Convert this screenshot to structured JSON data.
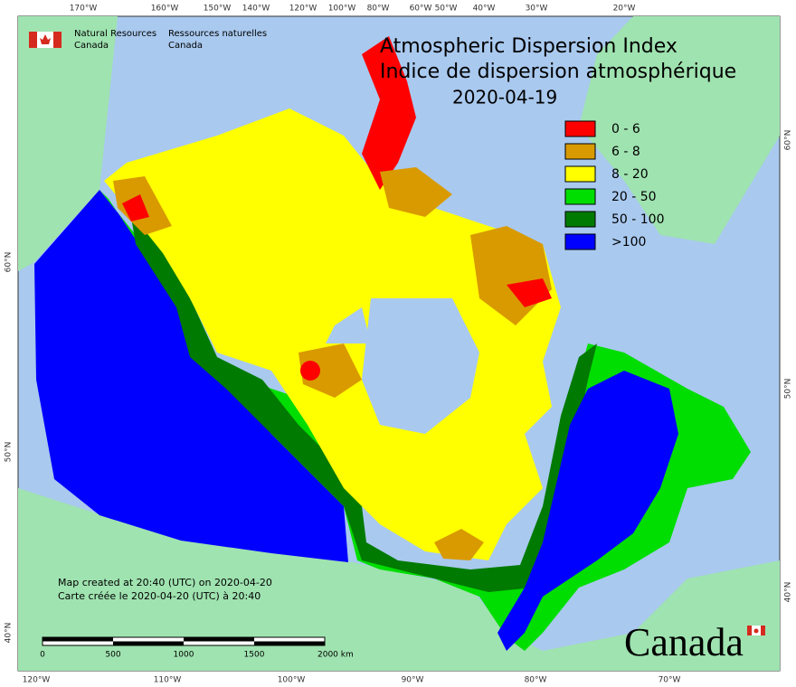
{
  "header": {
    "title_en": "Atmospheric Dispersion Index",
    "title_fr": "Indice de dispersion atmosphérique",
    "date": "2020-04-19"
  },
  "agency": {
    "en_1": "Natural Resources",
    "en_2": "Canada",
    "fr_1": "Ressources naturelles",
    "fr_2": "Canada"
  },
  "legend": [
    {
      "label": "0 - 6",
      "color": "#ff0000"
    },
    {
      "label": "6 - 8",
      "color": "#d99a00"
    },
    {
      "label": "8 - 20",
      "color": "#ffff00"
    },
    {
      "label": "20 - 50",
      "color": "#00dd00"
    },
    {
      "label": "50 - 100",
      "color": "#007a00"
    },
    {
      "label": ">100",
      "color": "#0000ff"
    }
  ],
  "graticule": {
    "top": [
      "170°W",
      "160°W",
      "150°W",
      "140°W",
      "120°W",
      "100°W",
      "80°W",
      "60°W",
      "50°W",
      "40°W",
      "30°W",
      "20°W"
    ],
    "bottom": [
      "120°W",
      "110°W",
      "100°W",
      "90°W",
      "80°W",
      "70°W"
    ],
    "left": [
      "60°N",
      "50°N",
      "40°N"
    ],
    "right": [
      "60°N",
      "50°N",
      "40°N"
    ]
  },
  "notes": {
    "created_en": "Map created at 20:40 (UTC) on 2020-04-20",
    "created_fr": "Carte créée le 2020-04-20 (UTC) à 20:40"
  },
  "scale_bar": [
    "0",
    "500",
    "1000",
    "1500",
    "2000  km"
  ],
  "wordmark": "Canada"
}
